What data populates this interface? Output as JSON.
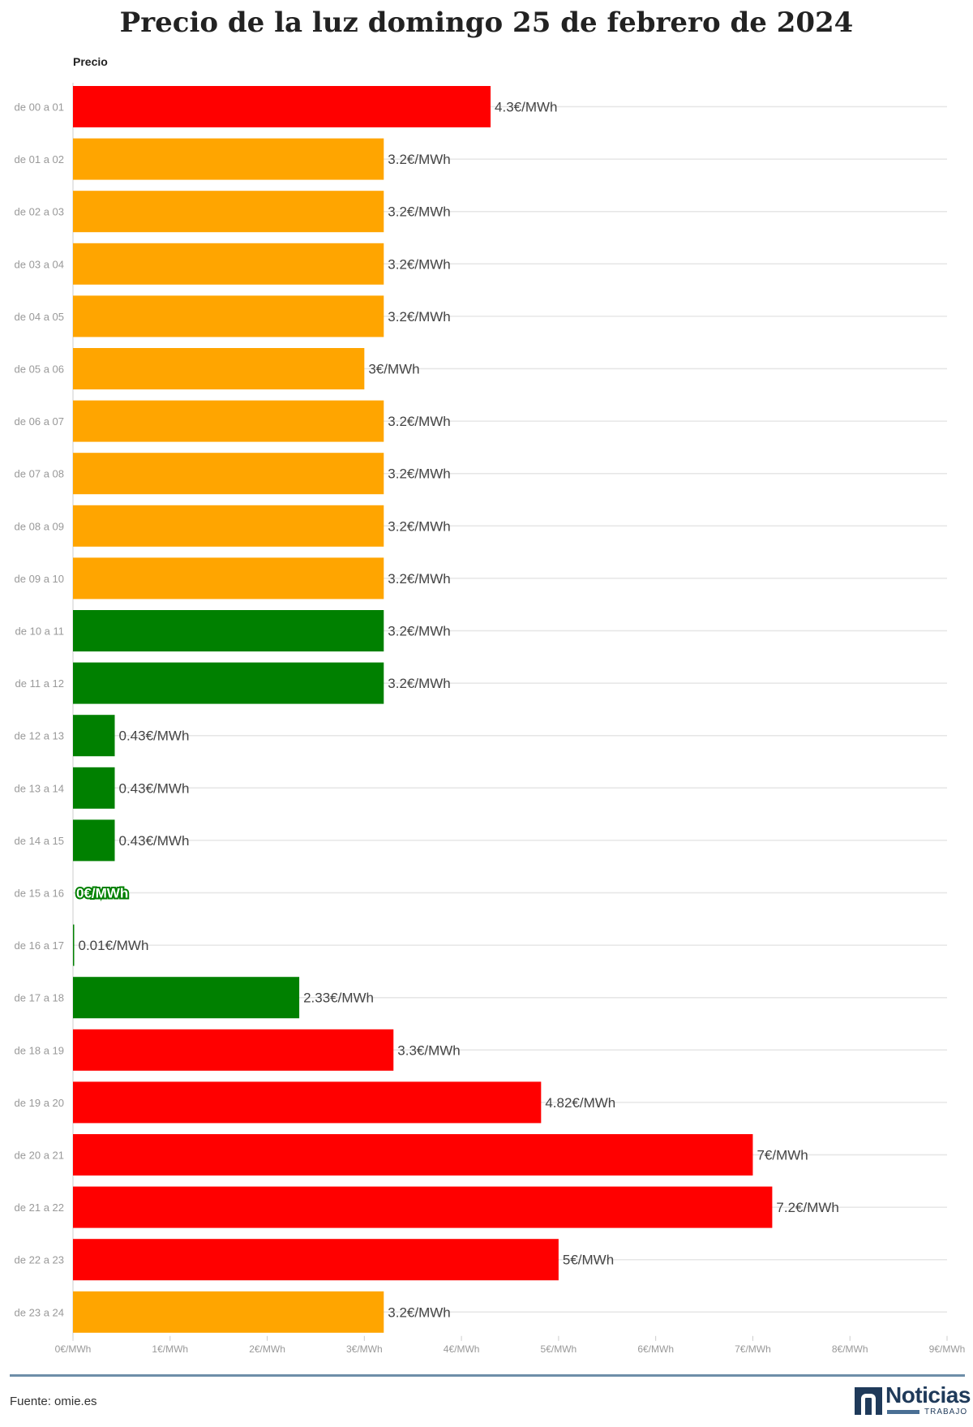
{
  "chart_data": {
    "type": "bar",
    "orientation": "horizontal",
    "title": "Precio de la luz domingo 25 de febrero de 2024",
    "series_name": "Precio",
    "xlim": [
      0,
      9
    ],
    "xticks": [
      "0€/MWh",
      "1€/MWh",
      "2€/MWh",
      "3€/MWh",
      "4€/MWh",
      "5€/MWh",
      "6€/MWh",
      "7€/MWh",
      "8€/MWh",
      "9€/MWh"
    ],
    "colors": {
      "high": "#ff0000",
      "medium": "#ffa500",
      "low": "#008000"
    },
    "bars": [
      {
        "label": "de 00 a 01",
        "value": 4.3,
        "display": "4.3€/MWh",
        "level": "high"
      },
      {
        "label": "de 01 a 02",
        "value": 3.2,
        "display": "3.2€/MWh",
        "level": "medium"
      },
      {
        "label": "de 02 a 03",
        "value": 3.2,
        "display": "3.2€/MWh",
        "level": "medium"
      },
      {
        "label": "de 03 a 04",
        "value": 3.2,
        "display": "3.2€/MWh",
        "level": "medium"
      },
      {
        "label": "de 04 a 05",
        "value": 3.2,
        "display": "3.2€/MWh",
        "level": "medium"
      },
      {
        "label": "de 05 a 06",
        "value": 3.0,
        "display": "3€/MWh",
        "level": "medium"
      },
      {
        "label": "de 06 a 07",
        "value": 3.2,
        "display": "3.2€/MWh",
        "level": "medium"
      },
      {
        "label": "de 07 a 08",
        "value": 3.2,
        "display": "3.2€/MWh",
        "level": "medium"
      },
      {
        "label": "de 08 a 09",
        "value": 3.2,
        "display": "3.2€/MWh",
        "level": "medium"
      },
      {
        "label": "de 09 a 10",
        "value": 3.2,
        "display": "3.2€/MWh",
        "level": "medium"
      },
      {
        "label": "de 10 a 11",
        "value": 3.2,
        "display": "3.2€/MWh",
        "level": "low"
      },
      {
        "label": "de 11 a 12",
        "value": 3.2,
        "display": "3.2€/MWh",
        "level": "low"
      },
      {
        "label": "de 12 a 13",
        "value": 0.43,
        "display": "0.43€/MWh",
        "level": "low"
      },
      {
        "label": "de 13 a 14",
        "value": 0.43,
        "display": "0.43€/MWh",
        "level": "low"
      },
      {
        "label": "de 14 a 15",
        "value": 0.43,
        "display": "0.43€/MWh",
        "level": "low"
      },
      {
        "label": "de 15 a 16",
        "value": 0,
        "display": "0€/MWh",
        "level": "low"
      },
      {
        "label": "de 16 a 17",
        "value": 0.01,
        "display": "0.01€/MWh",
        "level": "low"
      },
      {
        "label": "de 17 a 18",
        "value": 2.33,
        "display": "2.33€/MWh",
        "level": "low"
      },
      {
        "label": "de 18 a 19",
        "value": 3.3,
        "display": "3.3€/MWh",
        "level": "high"
      },
      {
        "label": "de 19 a 20",
        "value": 4.82,
        "display": "4.82€/MWh",
        "level": "high"
      },
      {
        "label": "de 20 a 21",
        "value": 7.0,
        "display": "7€/MWh",
        "level": "high"
      },
      {
        "label": "de 21 a 22",
        "value": 7.2,
        "display": "7.2€/MWh",
        "level": "high"
      },
      {
        "label": "de 22 a 23",
        "value": 5.0,
        "display": "5€/MWh",
        "level": "high"
      },
      {
        "label": "de 23 a 24",
        "value": 3.2,
        "display": "3.2€/MWh",
        "level": "medium"
      }
    ]
  },
  "footer": {
    "source": "Fuente: omie.es",
    "logo_text": "Noticias",
    "logo_subtext": "TRABAJO"
  }
}
